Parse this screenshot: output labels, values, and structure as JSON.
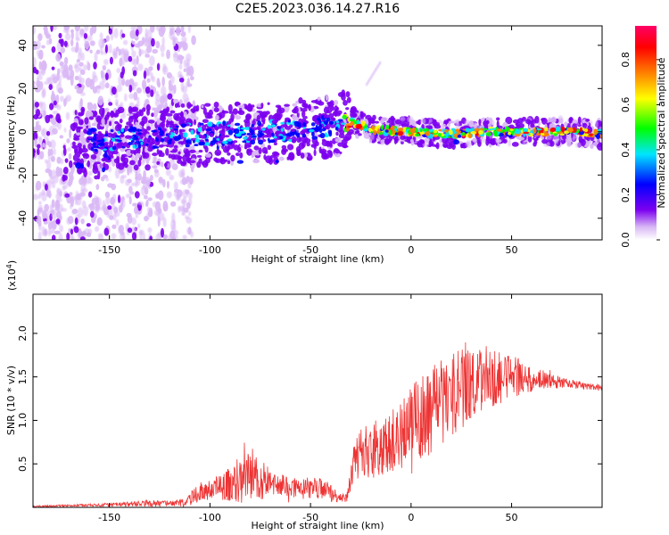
{
  "title": "C2E5.2023.036.14.27.R16",
  "chart_data": [
    {
      "type": "heatmap",
      "title": "C2E5.2023.036.14.27.R16",
      "xlabel": "Height of straight line (km)",
      "ylabel": "Frequency (Hz)",
      "xlim": [
        -188,
        95
      ],
      "ylim": [
        -50,
        49
      ],
      "xticks": [
        -150,
        -100,
        -50,
        0,
        50
      ],
      "xtick_labels": [
        "-150",
        "-100",
        "-50",
        "0",
        "50"
      ],
      "yticks": [
        -40,
        -20,
        0,
        20,
        40
      ],
      "ytick_labels": [
        "-40",
        "-20",
        "0",
        "20",
        "40"
      ],
      "ridge": {
        "x": [
          -160,
          -140,
          -120,
          -100,
          -80,
          -60,
          -40,
          -30,
          -20,
          0,
          20,
          40,
          60,
          80,
          95
        ],
        "frequency": [
          -4,
          -3,
          -2,
          -1,
          -0.5,
          0,
          3,
          5,
          1,
          0,
          -1,
          0,
          0,
          0,
          -1
        ]
      },
      "colorbar": {
        "label": "Normalized spectral amplitude",
        "range": [
          0,
          0.95
        ],
        "ticks": [
          0.0,
          0.2,
          0.4,
          0.6,
          0.8
        ],
        "tick_labels": [
          "0.0",
          "0.2",
          "0.4",
          "0.6",
          "0.8"
        ],
        "colors": [
          "#ffffff",
          "#d9b8f5",
          "#7c00f0",
          "#0000ff",
          "#00e5ff",
          "#00ff00",
          "#ffff00",
          "#ff8000",
          "#ff0000",
          "#ff0066"
        ]
      }
    },
    {
      "type": "line",
      "xlabel": "Height of straight line (km)",
      "ylabel": "SNR (10 * v/v)",
      "y_scale_label": "(x10",
      "y_scale_exponent": "4",
      "y_scale_close": ")",
      "color": "#ee3333",
      "xlim": [
        -188,
        95
      ],
      "ylim": [
        0,
        2.45
      ],
      "xticks": [
        -150,
        -100,
        -50,
        0,
        50
      ],
      "xtick_labels": [
        "-150",
        "-100",
        "-50",
        "0",
        "50"
      ],
      "yticks": [
        0.5,
        1.0,
        1.5,
        2.0
      ],
      "ytick_labels": [
        "0.5",
        "1.0",
        "1.5",
        "2.0"
      ],
      "envelope_x": [
        -188,
        -170,
        -150,
        -140,
        -130,
        -120,
        -112,
        -108,
        -100,
        -90,
        -85,
        -80,
        -75,
        -70,
        -62,
        -55,
        -48,
        -42,
        -36,
        -32,
        -28,
        -25,
        -20,
        -10,
        0,
        10,
        20,
        25,
        30,
        40,
        50,
        60,
        70,
        80,
        90,
        95
      ],
      "envelope_mean": [
        0.01,
        0.02,
        0.03,
        0.04,
        0.05,
        0.04,
        0.06,
        0.14,
        0.2,
        0.25,
        0.3,
        0.35,
        0.32,
        0.28,
        0.24,
        0.22,
        0.22,
        0.18,
        0.12,
        0.1,
        0.55,
        0.6,
        0.65,
        0.75,
        0.95,
        1.1,
        1.3,
        1.4,
        1.45,
        1.5,
        1.5,
        1.48,
        1.45,
        1.42,
        1.38,
        1.38
      ],
      "envelope_spread": [
        0.01,
        0.01,
        0.02,
        0.03,
        0.04,
        0.03,
        0.05,
        0.08,
        0.12,
        0.2,
        0.3,
        0.28,
        0.25,
        0.15,
        0.12,
        0.12,
        0.15,
        0.12,
        0.06,
        0.05,
        0.25,
        0.3,
        0.32,
        0.35,
        0.45,
        0.5,
        0.55,
        0.5,
        0.45,
        0.35,
        0.25,
        0.15,
        0.08,
        0.05,
        0.04,
        0.04
      ]
    }
  ]
}
